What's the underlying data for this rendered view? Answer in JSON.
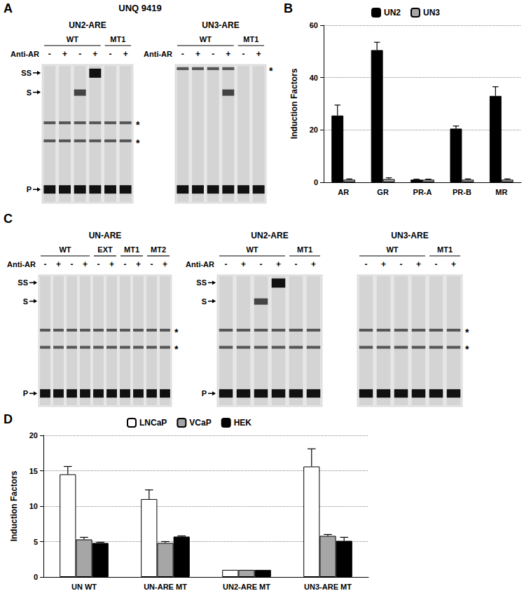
{
  "chart_data": [
    {
      "panel_label": "B",
      "type": "bar",
      "categories": [
        "AR",
        "GR",
        "PR-A",
        "PR-B",
        "MR"
      ],
      "series": [
        {
          "name": "UN2",
          "color": "#000000",
          "values": [
            25.5,
            50.5,
            1,
            20.5,
            33
          ],
          "errors": [
            4,
            3,
            0.2,
            1,
            3.5
          ]
        },
        {
          "name": "UN3",
          "color": "#a6a6a6",
          "values": [
            1,
            1.2,
            1,
            1,
            1
          ],
          "errors": [
            0.3,
            0.5,
            0.2,
            0.3,
            0.3
          ]
        }
      ],
      "y_label": "Induction Factors",
      "ylim": [
        0,
        60
      ],
      "yticks": [
        0,
        20,
        40,
        60
      ],
      "grid": true,
      "legend": "top"
    },
    {
      "panel_label": "D",
      "type": "bar",
      "categories": [
        "UN WT",
        "UN-ARE MT",
        "UN2-ARE MT",
        "UN3-ARE MT"
      ],
      "series": [
        {
          "name": "LNCaP",
          "color": "#ffffff",
          "values": [
            14.5,
            11,
            1,
            15.6
          ],
          "errors": [
            1.1,
            1.3,
            0,
            2.5
          ]
        },
        {
          "name": "VCaP",
          "color": "#a6a6a6",
          "values": [
            5.3,
            4.8,
            1,
            5.8
          ],
          "errors": [
            0.3,
            0.2,
            0,
            0.2
          ]
        },
        {
          "name": "HEK",
          "color": "#000000",
          "values": [
            4.8,
            5.7,
            1,
            5.1
          ],
          "errors": [
            0.1,
            0.1,
            0,
            0.5
          ]
        }
      ],
      "y_label": "Induction Factors",
      "ylim": [
        0,
        20
      ],
      "yticks": [
        0,
        5,
        10,
        15,
        20
      ],
      "grid": true,
      "legend": "top"
    }
  ],
  "gel_panels": [
    {
      "panel_label": "A",
      "title": "UNQ 9419",
      "gels": [
        {
          "probe": "UN2-ARE",
          "row_label": "Anti-AR",
          "left_markers": [
            "SS",
            "S",
            "P"
          ],
          "right_markers": [
            "*",
            "*"
          ],
          "groups": [
            {
              "name": "WT",
              "lanes": [
                {
                  "anti_ar": "-",
                  "bands": [
                    "P",
                    "*"
                  ]
                },
                {
                  "anti_ar": "+",
                  "bands": [
                    "P",
                    "*"
                  ]
                },
                {
                  "anti_ar": "-",
                  "bands": [
                    "P",
                    "*",
                    "S"
                  ]
                },
                {
                  "anti_ar": "+",
                  "bands": [
                    "P",
                    "*",
                    "SS"
                  ]
                }
              ]
            },
            {
              "name": "MT1",
              "lanes": [
                {
                  "anti_ar": "-",
                  "bands": [
                    "P",
                    "*"
                  ]
                },
                {
                  "anti_ar": "+",
                  "bands": [
                    "P",
                    "*"
                  ]
                }
              ]
            }
          ]
        },
        {
          "probe": "UN3-ARE",
          "row_label": "Anti-AR",
          "left_markers": [],
          "right_markers": [
            "*"
          ],
          "groups": [
            {
              "name": "WT",
              "lanes": [
                {
                  "anti_ar": "-",
                  "bands": [
                    "P",
                    "*"
                  ]
                },
                {
                  "anti_ar": "+",
                  "bands": [
                    "P",
                    "*"
                  ]
                },
                {
                  "anti_ar": "-",
                  "bands": [
                    "P",
                    "*"
                  ]
                },
                {
                  "anti_ar": "+",
                  "bands": [
                    "P",
                    "*",
                    "S"
                  ]
                }
              ]
            },
            {
              "name": "MT1",
              "lanes": [
                {
                  "anti_ar": "-",
                  "bands": [
                    "P"
                  ]
                },
                {
                  "anti_ar": "+",
                  "bands": [
                    "P"
                  ]
                }
              ]
            }
          ]
        }
      ]
    },
    {
      "panel_label": "C",
      "gels": [
        {
          "probe": "UN-ARE",
          "row_label": "Anti-AR",
          "left_markers": [
            "SS",
            "S",
            "P"
          ],
          "right_markers": [
            "*",
            "*"
          ],
          "groups": [
            {
              "name": "WT",
              "lanes": [
                {
                  "anti_ar": "-",
                  "bands": [
                    "P",
                    "*"
                  ]
                },
                {
                  "anti_ar": "+",
                  "bands": [
                    "P",
                    "*"
                  ]
                },
                {
                  "anti_ar": "-",
                  "bands": [
                    "P",
                    "*"
                  ]
                },
                {
                  "anti_ar": "+",
                  "bands": [
                    "P",
                    "*"
                  ]
                }
              ]
            },
            {
              "name": "EXT",
              "lanes": [
                {
                  "anti_ar": "-",
                  "bands": [
                    "P",
                    "*"
                  ]
                },
                {
                  "anti_ar": "+",
                  "bands": [
                    "P",
                    "*"
                  ]
                }
              ]
            },
            {
              "name": "MT1",
              "lanes": [
                {
                  "anti_ar": "-",
                  "bands": [
                    "P",
                    "*"
                  ]
                },
                {
                  "anti_ar": "+",
                  "bands": [
                    "P",
                    "*"
                  ]
                }
              ]
            },
            {
              "name": "MT2",
              "lanes": [
                {
                  "anti_ar": "-",
                  "bands": [
                    "P",
                    "*"
                  ]
                },
                {
                  "anti_ar": "+",
                  "bands": [
                    "P",
                    "*"
                  ]
                }
              ]
            }
          ]
        },
        {
          "probe": "UN2-ARE",
          "row_label": "Anti-AR",
          "left_markers": [
            "SS",
            "S",
            "P"
          ],
          "right_markers": [],
          "groups": [
            {
              "name": "WT",
              "lanes": [
                {
                  "anti_ar": "-",
                  "bands": [
                    "P",
                    "*"
                  ]
                },
                {
                  "anti_ar": "+",
                  "bands": [
                    "P",
                    "*"
                  ]
                },
                {
                  "anti_ar": "-",
                  "bands": [
                    "P",
                    "*",
                    "S"
                  ]
                },
                {
                  "anti_ar": "+",
                  "bands": [
                    "P",
                    "*",
                    "SS"
                  ]
                }
              ]
            },
            {
              "name": "MT1",
              "lanes": [
                {
                  "anti_ar": "-",
                  "bands": [
                    "P",
                    "*"
                  ]
                },
                {
                  "anti_ar": "+",
                  "bands": [
                    "P",
                    "*"
                  ]
                }
              ]
            }
          ]
        },
        {
          "probe": "UN3-ARE",
          "left_markers": [],
          "right_markers": [
            "*",
            "*"
          ],
          "groups": [
            {
              "name": "WT",
              "lanes": [
                {
                  "anti_ar": "-",
                  "bands": [
                    "P",
                    "*"
                  ]
                },
                {
                  "anti_ar": "+",
                  "bands": [
                    "P",
                    "*"
                  ]
                },
                {
                  "anti_ar": "-",
                  "bands": [
                    "P",
                    "*"
                  ]
                },
                {
                  "anti_ar": "+",
                  "bands": [
                    "P",
                    "*"
                  ]
                }
              ]
            },
            {
              "name": "MT1",
              "lanes": [
                {
                  "anti_ar": "-",
                  "bands": [
                    "P",
                    "*"
                  ]
                },
                {
                  "anti_ar": "+",
                  "bands": [
                    "P",
                    "*"
                  ]
                }
              ]
            }
          ]
        }
      ]
    }
  ]
}
